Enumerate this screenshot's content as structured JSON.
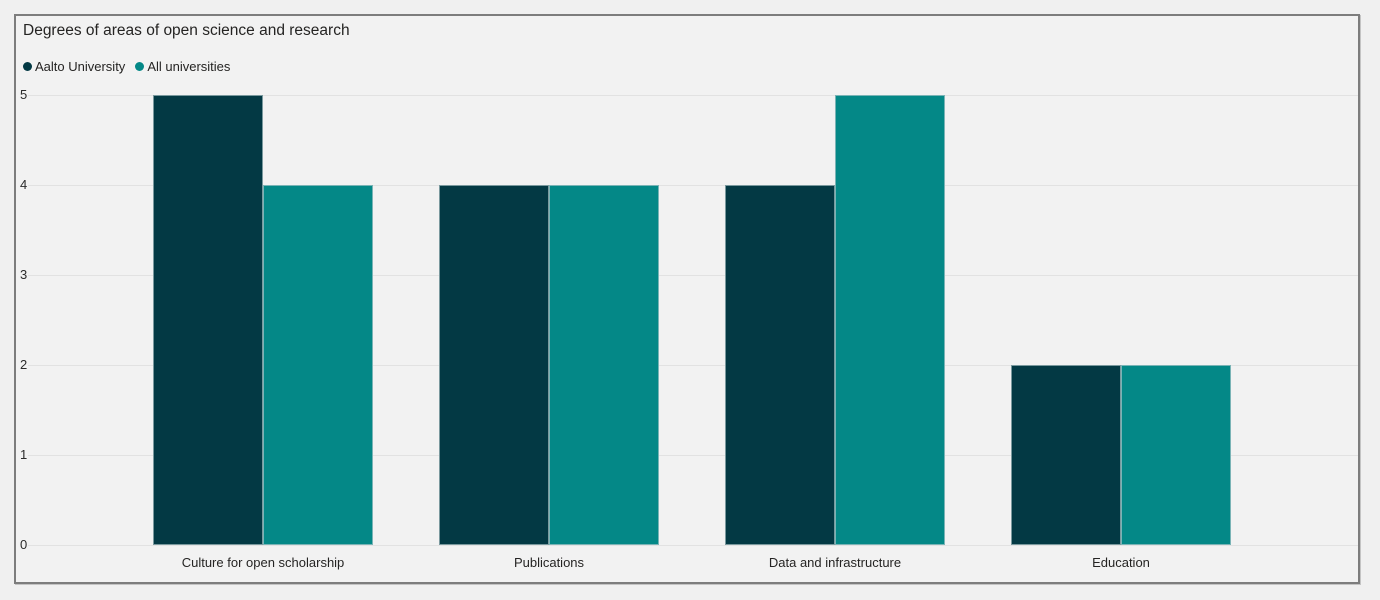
{
  "chart_data": {
    "type": "bar",
    "title": "Degrees of areas of open science and research",
    "categories": [
      "Culture for open scholarship",
      "Publications",
      "Data and infrastructure",
      "Education"
    ],
    "series": [
      {
        "name": "Aalto University",
        "color": "#033944",
        "values": [
          5,
          4,
          4,
          2
        ]
      },
      {
        "name": "All universities",
        "color": "#048887",
        "values": [
          4,
          4,
          5,
          2
        ]
      }
    ],
    "xlabel": "",
    "ylabel": "",
    "ylim": [
      0,
      5
    ],
    "yticks": [
      0,
      1,
      2,
      3,
      4,
      5
    ],
    "grid": true,
    "legend_position": "top-left"
  },
  "colors": {
    "page_background": "#f0f0f0",
    "panel_background": "#f2f2f2",
    "frame_border": "#7d7d7d",
    "gridline": "#e2e2e2",
    "text": "#252423"
  }
}
